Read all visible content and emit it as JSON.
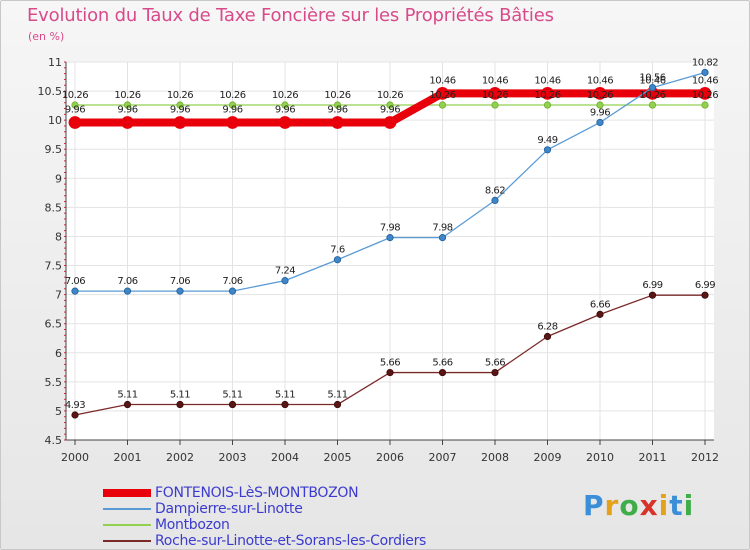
{
  "title": "Evolution du Taux de Taxe Foncière sur les Propriétés Bâties",
  "unit": "(en %)",
  "brand": {
    "letters": [
      "P",
      "r",
      "o",
      "x",
      "i",
      "t",
      "i"
    ],
    "colors": [
      "#3a8fd8",
      "#e3a21a",
      "#3fae49",
      "#d8332b",
      "#e3a21a",
      "#3a8fd8",
      "#3fae49"
    ]
  },
  "chart_data": {
    "type": "line",
    "title": "Evolution du Taux de Taxe Foncière sur les Propriétés Bâties",
    "ylabel": "(en %)",
    "xlabel": "",
    "x": [
      2000,
      2001,
      2002,
      2003,
      2004,
      2005,
      2006,
      2007,
      2008,
      2009,
      2010,
      2011,
      2012
    ],
    "ylim": [
      4.5,
      11
    ],
    "yticks": [
      "4.5",
      "5",
      "5.5",
      "6",
      "6.5",
      "7",
      "7.5",
      "8",
      "8.5",
      "9",
      "9.5",
      "10",
      "10.5",
      "11"
    ],
    "grid": true,
    "legend_position": "bottom-left",
    "series": [
      {
        "name": "FONTENOIS-LèS-MONTBOZON",
        "color": "#e8000b",
        "values": [
          9.96,
          9.96,
          9.96,
          9.96,
          9.96,
          9.96,
          9.96,
          10.46,
          10.46,
          10.46,
          10.46,
          10.46,
          10.46
        ],
        "labels": [
          "9.96",
          "9.96",
          "9.96",
          "9.96",
          "9.96",
          "9.96",
          "9.96",
          "10.46",
          "10.46",
          "10.46",
          "10.46",
          "10.46",
          "10.46"
        ]
      },
      {
        "name": "Dampierre-sur-Linotte",
        "color": "#5b9bd5",
        "values": [
          7.06,
          7.06,
          7.06,
          7.06,
          7.24,
          7.6,
          7.98,
          7.98,
          8.62,
          9.49,
          9.96,
          10.56,
          10.82
        ],
        "labels": [
          "7.06",
          "7.06",
          "7.06",
          "7.06",
          "7.24",
          "7.6",
          "7.98",
          "7.98",
          "8.62",
          "9.49",
          "9.96",
          "10.56",
          "10.82"
        ]
      },
      {
        "name": "Montbozon",
        "color": "#92d050",
        "values": [
          10.26,
          10.26,
          10.26,
          10.26,
          10.26,
          10.26,
          10.26,
          10.26,
          10.26,
          10.26,
          10.26,
          10.26,
          10.26
        ],
        "labels": [
          "10.26",
          "10.26",
          "10.26",
          "10.26",
          "10.26",
          "10.26",
          "10.26",
          "10.26",
          "10.26",
          "10.26",
          "10.26",
          "10.26",
          "10.26"
        ]
      },
      {
        "name": "Roche-sur-Linotte-et-Sorans-les-Cordiers",
        "color": "#7b2a2a",
        "values": [
          4.93,
          5.11,
          5.11,
          5.11,
          5.11,
          5.11,
          5.66,
          5.66,
          5.66,
          6.28,
          6.66,
          6.99,
          6.99
        ],
        "labels": [
          "4.93",
          "5.11",
          "5.11",
          "5.11",
          "5.11",
          "5.11",
          "5.66",
          "5.66",
          "5.66",
          "6.28",
          "6.66",
          "6.99",
          "6.99"
        ]
      }
    ]
  }
}
